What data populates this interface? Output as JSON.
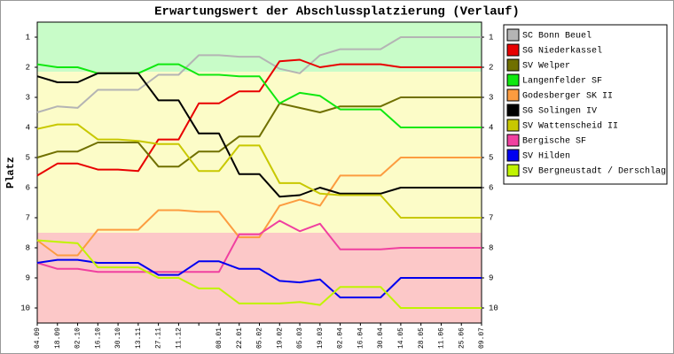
{
  "chart_data": {
    "type": "line",
    "title": "Erwartungswert der Abschlussplatzierung (Verlauf)",
    "y_label": "Platz",
    "categories": [
      "04.09",
      "18.09",
      "02.10",
      "16.10",
      "30.10",
      "13.11",
      "27.11",
      "11.12",
      null,
      "08.01",
      "22.01",
      "05.02",
      "19.02",
      "05.03",
      "19.03",
      "02.04",
      "16.04",
      "30.04",
      "14.05",
      "28.05",
      "11.06",
      "25.06",
      "09.07"
    ],
    "ylim": [
      10.5,
      0.5
    ],
    "yticks": [
      1,
      2,
      3,
      4,
      5,
      6,
      7,
      8,
      9,
      10
    ],
    "bands": [
      {
        "from": 0.5,
        "to": 2.15,
        "color": "#c8fcc8"
      },
      {
        "from": 2.15,
        "to": 7.5,
        "color": "#fcfcc8"
      },
      {
        "from": 7.5,
        "to": 10.5,
        "color": "#fcc8c8"
      }
    ],
    "series": [
      {
        "name": "SC Bonn Beuel",
        "color": "#b4b4b4",
        "values": [
          3.5,
          3.3,
          3.35,
          2.75,
          2.75,
          2.75,
          2.25,
          2.25,
          1.6,
          1.6,
          1.65,
          1.65,
          2.05,
          2.2,
          1.6,
          1.4,
          1.4,
          1.4,
          1,
          1,
          1,
          1,
          1
        ]
      },
      {
        "name": "SG Niederkassel",
        "color": "#e80000",
        "values": [
          5.6,
          5.2,
          5.2,
          5.4,
          5.4,
          5.45,
          4.4,
          4.4,
          3.2,
          3.2,
          2.8,
          2.8,
          1.8,
          1.75,
          2,
          1.9,
          1.9,
          1.9,
          2,
          2,
          2,
          2,
          2
        ]
      },
      {
        "name": "SV Welper",
        "color": "#707000",
        "values": [
          5,
          4.8,
          4.8,
          4.5,
          4.5,
          4.5,
          5.3,
          5.3,
          4.8,
          4.8,
          4.3,
          4.3,
          3.2,
          3.35,
          3.5,
          3.3,
          3.3,
          3.3,
          3,
          3,
          3,
          3,
          3
        ]
      },
      {
        "name": "Langenfelder SF",
        "color": "#10e810",
        "values": [
          1.9,
          2,
          2,
          2.2,
          2.2,
          2.2,
          1.9,
          1.9,
          2.25,
          2.25,
          2.3,
          2.3,
          3.2,
          2.85,
          2.95,
          3.4,
          3.4,
          3.4,
          4,
          4,
          4,
          4,
          4
        ]
      },
      {
        "name": "Godesberger SK II",
        "color": "#fc9c40",
        "values": [
          7.75,
          8.25,
          8.25,
          7.4,
          7.4,
          7.4,
          6.75,
          6.75,
          6.8,
          6.8,
          7.65,
          7.65,
          6.6,
          6.4,
          6.6,
          5.6,
          5.6,
          5.6,
          5,
          5,
          5,
          5,
          5
        ]
      },
      {
        "name": "SG Solingen IV",
        "color": "#000000",
        "values": [
          2.3,
          2.5,
          2.5,
          2.2,
          2.2,
          2.2,
          3.1,
          3.1,
          4.2,
          4.2,
          5.55,
          5.55,
          6.3,
          6.25,
          6,
          6.2,
          6.2,
          6.2,
          6,
          6,
          6,
          6,
          6
        ]
      },
      {
        "name": "SV Wattenscheid II",
        "color": "#c8c800",
        "values": [
          4.05,
          3.9,
          3.9,
          4.4,
          4.4,
          4.45,
          4.55,
          4.55,
          5.45,
          5.45,
          4.6,
          4.6,
          5.85,
          5.85,
          6.2,
          6.25,
          6.25,
          6.25,
          7,
          7,
          7,
          7,
          7
        ]
      },
      {
        "name": "Bergische SF",
        "color": "#f040a0",
        "values": [
          8.5,
          8.7,
          8.7,
          8.8,
          8.8,
          8.8,
          8.8,
          8.8,
          8.8,
          8.8,
          7.55,
          7.55,
          7.1,
          7.45,
          7.2,
          8.05,
          8.05,
          8.05,
          8,
          8,
          8,
          8,
          8
        ]
      },
      {
        "name": "SV Hilden",
        "color": "#0000f0",
        "values": [
          8.5,
          8.4,
          8.4,
          8.5,
          8.5,
          8.5,
          8.9,
          8.9,
          8.45,
          8.45,
          8.7,
          8.7,
          9.1,
          9.15,
          9.05,
          9.65,
          9.65,
          9.65,
          9,
          9,
          9,
          9,
          9
        ]
      },
      {
        "name": "SV Bergneustadt / Derschlag",
        "color": "#c0f400",
        "values": [
          7.75,
          7.8,
          7.85,
          8.65,
          8.65,
          8.65,
          9,
          9,
          9.35,
          9.35,
          9.85,
          9.85,
          9.85,
          9.8,
          9.9,
          9.3,
          9.3,
          9.3,
          10,
          10,
          10,
          10,
          10
        ]
      }
    ]
  }
}
